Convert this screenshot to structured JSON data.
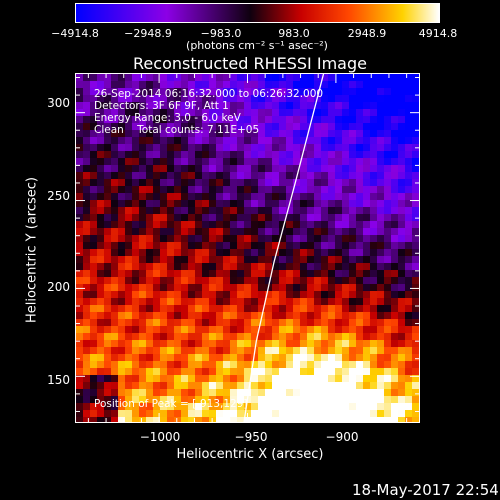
{
  "colorbar": {
    "ticks": [
      "−4914.8",
      "−2948.9",
      "−983.0",
      "983.0",
      "2948.9",
      "4914.8"
    ],
    "unit": "(photons cm⁻² s⁻¹ asec⁻²)"
  },
  "chart_data": {
    "type": "heatmap",
    "title": "Reconstructed RHESSI Image",
    "xlabel": "Heliocentric X (arcsec)",
    "ylabel": "Heliocentric Y (arcsec)",
    "x_ticks": [
      "−1000",
      "−950",
      "−900"
    ],
    "y_ticks": [
      "150",
      "200",
      "250",
      "300"
    ],
    "xlim": [
      -1047,
      -853
    ],
    "ylim": [
      124,
      322
    ],
    "value_range": [
      -4914.8,
      4914.8
    ],
    "colormap": "blue-purple-black-red-orange-yellow-white",
    "annotations": [
      "26-Sep-2014 06:16:32.000 to 06:26:32.000",
      "Detectors: 3F 6F 9F, Att 1",
      "Energy Range: 3.0 - 6.0 keV",
      "Clean    Total counts: 7.11E+05"
    ],
    "peak_label": "Position of Peak = [-913,129]",
    "peak": [
      -913,
      129
    ],
    "limb_curve": [
      [
        -952,
        124
      ],
      [
        -945,
        170
      ],
      [
        -935,
        215
      ],
      [
        -923,
        260
      ],
      [
        -907,
        322
      ]
    ],
    "grid": false
  },
  "footer": {
    "date": "18-May-2017 22:54"
  }
}
